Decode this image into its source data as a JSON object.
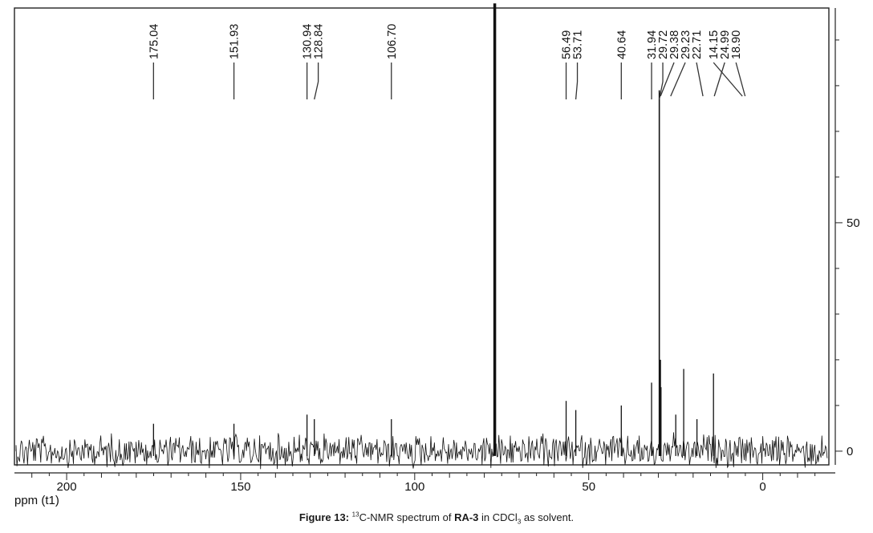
{
  "chart_data": {
    "type": "line",
    "title": "",
    "xlabel": "ppm (t1)",
    "ylabel": "",
    "xlim": [
      215,
      -19
    ],
    "ylim": [
      -3,
      97
    ],
    "x_ticks": [
      200,
      150,
      100,
      50,
      0
    ],
    "y_ticks": [
      0,
      50
    ],
    "grid": false,
    "peaks": [
      {
        "ppm": 175.04,
        "label": "175.04",
        "intensity": 6
      },
      {
        "ppm": 151.93,
        "label": "151.93",
        "intensity": 6
      },
      {
        "ppm": 130.94,
        "label": "130.94",
        "intensity": 8
      },
      {
        "ppm": 128.84,
        "label": "128.84",
        "intensity": 7
      },
      {
        "ppm": 106.7,
        "label": "106.70",
        "intensity": 7
      },
      {
        "ppm": 77.0,
        "label": "",
        "intensity": 98
      },
      {
        "ppm": 56.49,
        "label": "56.49",
        "intensity": 11
      },
      {
        "ppm": 53.71,
        "label": "53.71",
        "intensity": 9
      },
      {
        "ppm": 40.64,
        "label": "40.64",
        "intensity": 10
      },
      {
        "ppm": 31.94,
        "label": "31.94",
        "intensity": 15
      },
      {
        "ppm": 29.72,
        "label": "29.72",
        "intensity": 79
      },
      {
        "ppm": 29.38,
        "label": "29.38",
        "intensity": 20
      },
      {
        "ppm": 29.23,
        "label": "29.23",
        "intensity": 14
      },
      {
        "ppm": 22.71,
        "label": "22.71",
        "intensity": 18
      },
      {
        "ppm": 14.15,
        "label": "14.15",
        "intensity": 17
      },
      {
        "ppm": 24.99,
        "label": "24.99",
        "intensity": 8
      },
      {
        "ppm": 18.9,
        "label": "18.90",
        "intensity": 7
      }
    ],
    "colors": {
      "line": "#111111",
      "axis": "#222222",
      "text": "#111111"
    }
  },
  "caption": {
    "prefix": "Figure 13:",
    "sup": "13",
    "part1": "C-NMR spectrum of",
    "compound": "RA-3",
    "part2": "in CDCl",
    "sub": "3",
    "part3": "as solvent."
  }
}
